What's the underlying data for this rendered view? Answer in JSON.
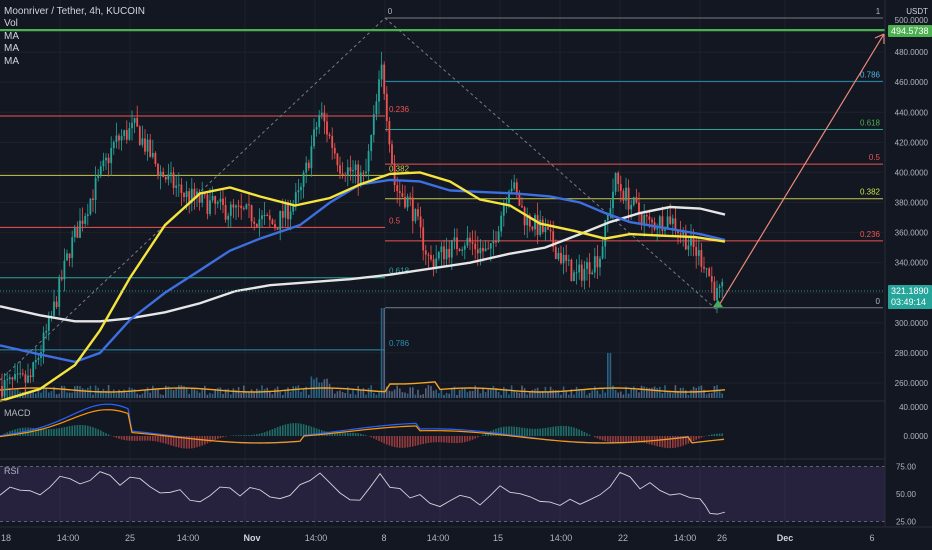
{
  "header": {
    "symbol": "Moonriver / Tether, 4h, KUCOIN",
    "indicators": [
      "Vol",
      "MA",
      "MA",
      "MA"
    ]
  },
  "price_scale": {
    "currency": "USDT",
    "top_value": "500.0000",
    "ticks": [
      "480.0000",
      "460.0000",
      "440.0000",
      "420.0000",
      "400.0000",
      "380.0000",
      "360.0000",
      "340.0000",
      "300.0000",
      "280.0000",
      "260.0000"
    ],
    "target_tag": "494.5738",
    "last_price": "321.1890",
    "countdown": "03:49:14"
  },
  "macd_panel": {
    "title": "MACD",
    "ticks": [
      "40.0000",
      "0.0000"
    ]
  },
  "rsi_panel": {
    "title": "RSI",
    "ticks": [
      "75.00",
      "50.00",
      "25.00"
    ]
  },
  "time_axis": {
    "labels": [
      "18",
      "14:00",
      "25",
      "14:00",
      "Nov",
      "14:00",
      "8",
      "14:00",
      "15",
      "14:00",
      "22",
      "14:00",
      "26",
      "Dec",
      "6"
    ]
  },
  "fib_right": {
    "start": "0",
    "end": "1",
    "levels": [
      "0.786",
      "0.618",
      "0.5",
      "0.382",
      "0.236",
      "0"
    ]
  },
  "fib_left": {
    "levels": [
      "0.236",
      "0.382",
      "0.5",
      "0.618",
      "0.786"
    ],
    "top_label": "0"
  },
  "colors": {
    "background": "#131722",
    "up": "#26a69a",
    "down": "#ef5350",
    "ma_short": "#f5e43c",
    "ma_mid": "#3d6fe0",
    "ma_long": "#e6e6e6",
    "target_line": "#4caf50",
    "arrow": "#f08a7a"
  },
  "chart_data": {
    "type": "candlestick",
    "title": "Moonriver / Tether, 4h, KUCOIN",
    "ylim": [
      250,
      510
    ],
    "last_price": 321.189,
    "target_price": 494.5738,
    "fib_right_prices": [
      460.5,
      428.5,
      405.5,
      382.5,
      354.5,
      310.0
    ],
    "fib_left_prices": [
      437.5,
      398.0,
      363.5,
      330.0,
      282.0,
      500.0
    ],
    "ma_short": [
      [
        0,
        248
      ],
      [
        40,
        256
      ],
      [
        75,
        272
      ],
      [
        100,
        295
      ],
      [
        130,
        330
      ],
      [
        165,
        365
      ],
      [
        200,
        386
      ],
      [
        230,
        390
      ],
      [
        260,
        384
      ],
      [
        295,
        378
      ],
      [
        330,
        383
      ],
      [
        360,
        392
      ],
      [
        390,
        399
      ],
      [
        420,
        400
      ],
      [
        450,
        394
      ],
      [
        480,
        382
      ],
      [
        510,
        378
      ],
      [
        540,
        366
      ],
      [
        575,
        361
      ],
      [
        605,
        356
      ],
      [
        630,
        359
      ],
      [
        660,
        358
      ],
      [
        695,
        357
      ],
      [
        725,
        354
      ]
    ],
    "ma_mid": [
      [
        0,
        285
      ],
      [
        40,
        279
      ],
      [
        75,
        274
      ],
      [
        100,
        280
      ],
      [
        130,
        302
      ],
      [
        165,
        320
      ],
      [
        200,
        335
      ],
      [
        230,
        348
      ],
      [
        260,
        356
      ],
      [
        300,
        365
      ],
      [
        330,
        380
      ],
      [
        360,
        392
      ],
      [
        390,
        395
      ],
      [
        420,
        394
      ],
      [
        450,
        388
      ],
      [
        480,
        387
      ],
      [
        515,
        386
      ],
      [
        550,
        384
      ],
      [
        580,
        380
      ],
      [
        605,
        373
      ],
      [
        630,
        367
      ],
      [
        665,
        363
      ],
      [
        700,
        359
      ],
      [
        725,
        355
      ]
    ],
    "ma_long": [
      [
        0,
        311
      ],
      [
        40,
        305
      ],
      [
        75,
        301
      ],
      [
        100,
        301
      ],
      [
        130,
        303
      ],
      [
        165,
        307
      ],
      [
        200,
        313
      ],
      [
        235,
        321
      ],
      [
        270,
        325
      ],
      [
        310,
        327
      ],
      [
        350,
        329
      ],
      [
        390,
        332
      ],
      [
        430,
        336
      ],
      [
        470,
        340
      ],
      [
        510,
        346
      ],
      [
        545,
        350
      ],
      [
        580,
        359
      ],
      [
        610,
        367
      ],
      [
        640,
        373
      ],
      [
        670,
        377
      ],
      [
        700,
        376
      ],
      [
        725,
        372
      ]
    ],
    "rsi": [
      [
        0,
        49
      ],
      [
        20,
        54
      ],
      [
        40,
        52
      ],
      [
        60,
        66
      ],
      [
        80,
        57
      ],
      [
        100,
        70
      ],
      [
        120,
        58
      ],
      [
        140,
        63
      ],
      [
        160,
        51
      ],
      [
        180,
        55
      ],
      [
        200,
        43
      ],
      [
        220,
        57
      ],
      [
        240,
        48
      ],
      [
        260,
        56
      ],
      [
        280,
        44
      ],
      [
        300,
        58
      ],
      [
        320,
        68
      ],
      [
        340,
        52
      ],
      [
        360,
        45
      ],
      [
        380,
        67
      ],
      [
        400,
        53
      ],
      [
        420,
        47
      ],
      [
        440,
        38
      ],
      [
        460,
        49
      ],
      [
        480,
        43
      ],
      [
        500,
        55
      ],
      [
        520,
        49
      ],
      [
        540,
        46
      ],
      [
        560,
        40
      ],
      [
        580,
        41
      ],
      [
        600,
        51
      ],
      [
        620,
        70
      ],
      [
        640,
        56
      ],
      [
        660,
        55
      ],
      [
        680,
        48
      ],
      [
        700,
        43
      ],
      [
        710,
        30
      ],
      [
        725,
        35
      ]
    ],
    "macd_range": [
      -20,
      45
    ]
  }
}
